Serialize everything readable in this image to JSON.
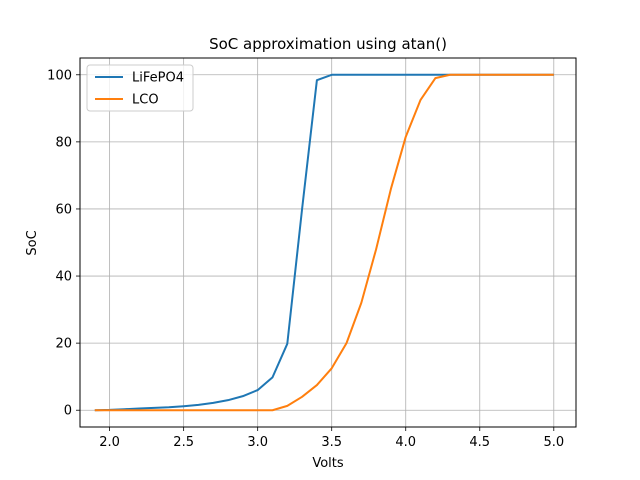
{
  "chart_data": {
    "type": "line",
    "title": "SoC approximation using atan()",
    "xlabel": "Volts",
    "ylabel": "SoC",
    "xlim": [
      1.8,
      5.15
    ],
    "ylim": [
      -5,
      105
    ],
    "xticks": [
      2.0,
      2.5,
      3.0,
      3.5,
      4.0,
      4.5,
      5.0
    ],
    "xtick_labels": [
      "2.0",
      "2.5",
      "3.0",
      "3.5",
      "4.0",
      "4.5",
      "5.0"
    ],
    "yticks": [
      0,
      20,
      40,
      60,
      80,
      100
    ],
    "ytick_labels": [
      "0",
      "20",
      "40",
      "60",
      "80",
      "100"
    ],
    "grid": true,
    "legend_position": "top-left",
    "series": [
      {
        "name": "LiFePO4",
        "color": "#1f77b4",
        "x": [
          1.9,
          2.0,
          2.1,
          2.2,
          2.3,
          2.4,
          2.5,
          2.6,
          2.7,
          2.8,
          2.9,
          3.0,
          3.1,
          3.2,
          3.3,
          3.4,
          3.5,
          3.6,
          3.7,
          3.8,
          3.9,
          4.0,
          4.1,
          4.2,
          4.3,
          4.4,
          4.5,
          4.6,
          4.7,
          4.8,
          4.9,
          5.0
        ],
        "y": [
          0.0,
          0.1,
          0.3,
          0.5,
          0.7,
          0.9,
          1.2,
          1.6,
          2.2,
          3.0,
          4.2,
          6.0,
          9.8,
          19.8,
          60.0,
          98.4,
          100,
          100,
          100,
          100,
          100,
          100,
          100,
          100,
          100,
          100,
          100,
          100,
          100,
          100,
          100,
          100
        ]
      },
      {
        "name": "LCO",
        "color": "#ff7f0e",
        "x": [
          1.9,
          2.0,
          2.1,
          2.2,
          2.3,
          2.4,
          2.5,
          2.6,
          2.7,
          2.8,
          2.9,
          3.0,
          3.1,
          3.2,
          3.3,
          3.4,
          3.5,
          3.6,
          3.7,
          3.8,
          3.9,
          4.0,
          4.1,
          4.2,
          4.3,
          4.4,
          4.5,
          4.6,
          4.7,
          4.8,
          4.9,
          5.0
        ],
        "y": [
          0,
          0,
          0,
          0,
          0,
          0,
          0,
          0,
          0,
          0,
          0,
          0,
          0,
          1.3,
          4.0,
          7.5,
          12.5,
          20.0,
          32.0,
          48.0,
          66.0,
          81.5,
          92.5,
          99.0,
          100,
          100,
          100,
          100,
          100,
          100,
          100,
          100
        ]
      }
    ]
  }
}
